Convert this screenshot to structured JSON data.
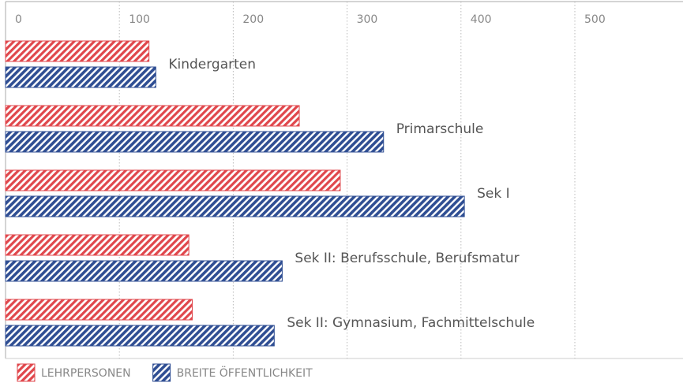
{
  "chart_data": {
    "type": "bar",
    "orientation": "horizontal",
    "categories": [
      "Kindergarten",
      "Primarschule",
      "Sek I",
      "Sek II: Berufsschule, Berufsmatur",
      "Sek II: Gymnasium, Fachmittelschule"
    ],
    "series": [
      {
        "name": "LEHRPERSONEN",
        "color": "#e0474c",
        "values": [
          126,
          258,
          294,
          161,
          164
        ]
      },
      {
        "name": "BREITE ÖFFENTLICHKEIT",
        "color": "#2f4e93",
        "values": [
          132,
          332,
          403,
          243,
          236
        ]
      }
    ],
    "xlim": [
      0,
      595
    ],
    "xticks": [
      0,
      100,
      200,
      300,
      400,
      500
    ],
    "grid": true,
    "legend": "bottom-left"
  }
}
